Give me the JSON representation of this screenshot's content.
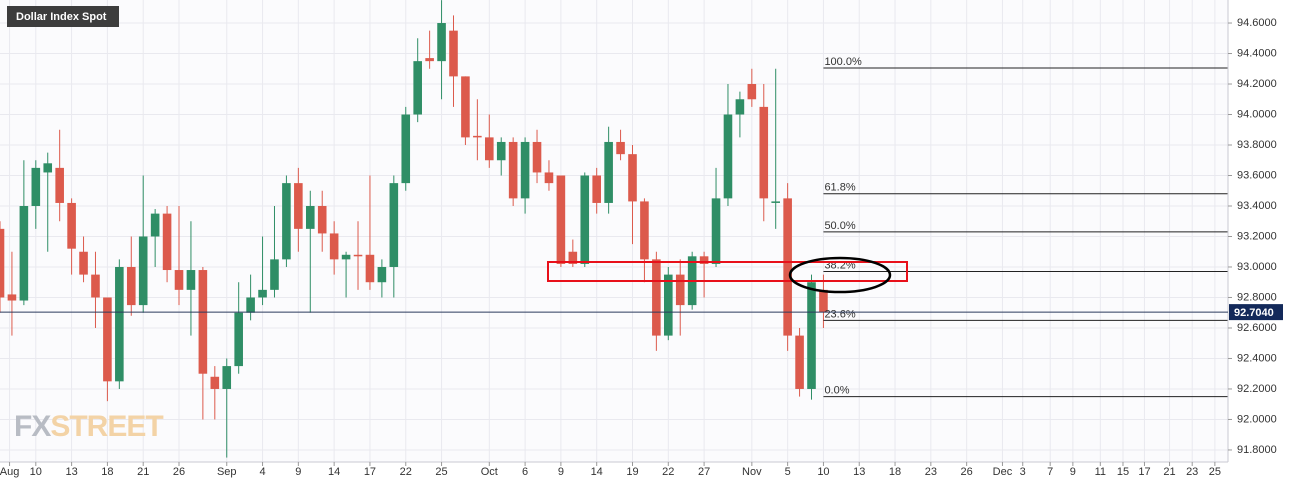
{
  "chart_data": {
    "type": "candlestick",
    "title": "Dollar Index Spot",
    "watermark": [
      "FX",
      "STREET"
    ],
    "up_color": "#2f8e66",
    "down_color": "#dc5a4c",
    "grid": true,
    "xlim": [
      0,
      102.9
    ],
    "ylim": [
      91.721,
      94.751
    ],
    "xticks": [
      {
        "value": 0.8,
        "label": "Aug"
      },
      {
        "value": 3,
        "label": "10"
      },
      {
        "value": 6,
        "label": "13"
      },
      {
        "value": 9,
        "label": "18"
      },
      {
        "value": 12,
        "label": "21"
      },
      {
        "value": 15,
        "label": "26"
      },
      {
        "value": 19,
        "label": "Sep"
      },
      {
        "value": 22,
        "label": "4"
      },
      {
        "value": 25,
        "label": "9"
      },
      {
        "value": 28,
        "label": "14"
      },
      {
        "value": 31,
        "label": "17"
      },
      {
        "value": 34,
        "label": "22"
      },
      {
        "value": 37,
        "label": "25"
      },
      {
        "value": 41,
        "label": "Oct"
      },
      {
        "value": 44,
        "label": "6"
      },
      {
        "value": 47,
        "label": "9"
      },
      {
        "value": 50,
        "label": "14"
      },
      {
        "value": 53,
        "label": "19"
      },
      {
        "value": 56,
        "label": "22"
      },
      {
        "value": 59,
        "label": "27"
      },
      {
        "value": 63,
        "label": "Nov"
      },
      {
        "value": 66,
        "label": "5"
      },
      {
        "value": 69,
        "label": "10"
      },
      {
        "value": 72,
        "label": "13"
      },
      {
        "value": 75,
        "label": "18"
      },
      {
        "value": 78,
        "label": "23"
      },
      {
        "value": 81,
        "label": "26"
      },
      {
        "value": 84,
        "label": "Dec"
      },
      {
        "value": 85.7,
        "label": "3"
      },
      {
        "value": 88,
        "label": "7"
      },
      {
        "value": 89.9,
        "label": "9"
      },
      {
        "value": 92.2,
        "label": "11"
      },
      {
        "value": 94.1,
        "label": "15"
      },
      {
        "value": 95.9,
        "label": "17"
      },
      {
        "value": 98,
        "label": "21"
      },
      {
        "value": 99.9,
        "label": "23"
      },
      {
        "value": 101.8,
        "label": "25"
      }
    ],
    "yticks": [
      {
        "value": 91.8,
        "label": "91.8000"
      },
      {
        "value": 92.0,
        "label": "92.0000"
      },
      {
        "value": 92.2,
        "label": "92.2000"
      },
      {
        "value": 92.4,
        "label": "92.4000"
      },
      {
        "value": 92.6,
        "label": "92.6000"
      },
      {
        "value": 92.8,
        "label": "92.8000"
      },
      {
        "value": 93.0,
        "label": "93.0000"
      },
      {
        "value": 93.2,
        "label": "93.2000"
      },
      {
        "value": 93.4,
        "label": "93.4000"
      },
      {
        "value": 93.6,
        "label": "93.6000"
      },
      {
        "value": 93.8,
        "label": "93.8000"
      },
      {
        "value": 94.0,
        "label": "94.0000"
      },
      {
        "value": 94.2,
        "label": "94.2000"
      },
      {
        "value": 94.4,
        "label": "94.4000"
      },
      {
        "value": 94.6,
        "label": "94.6000"
      }
    ],
    "x": [
      0,
      1,
      2,
      3,
      4,
      5,
      6,
      7,
      8,
      9,
      10,
      11,
      12,
      13,
      14,
      15,
      16,
      17,
      18,
      19,
      20,
      21,
      22,
      23,
      24,
      25,
      26,
      27,
      28,
      29,
      30,
      31,
      32,
      33,
      34,
      35,
      36,
      37,
      38,
      39,
      40,
      41,
      42,
      43,
      44,
      45,
      46,
      47,
      48,
      49,
      50,
      51,
      52,
      53,
      54,
      55,
      56,
      57,
      58,
      59,
      60,
      61,
      62,
      63,
      64,
      65,
      66,
      67,
      68,
      69
    ],
    "open": [
      93.25,
      92.82,
      92.78,
      93.4,
      93.62,
      93.65,
      93.42,
      93.1,
      92.95,
      92.8,
      92.25,
      93.0,
      92.75,
      93.2,
      93.35,
      92.98,
      92.85,
      92.98,
      92.28,
      92.2,
      92.35,
      92.7,
      92.8,
      92.85,
      93.05,
      93.55,
      93.25,
      93.4,
      93.22,
      93.05,
      93.08,
      93.08,
      92.9,
      93.0,
      93.55,
      94.0,
      94.37,
      94.35,
      94.55,
      94.25,
      93.86,
      93.85,
      93.7,
      93.82,
      93.45,
      93.82,
      93.62,
      93.6,
      93.1,
      93.02,
      93.6,
      93.42,
      93.82,
      93.74,
      93.43,
      93.05,
      92.55,
      92.95,
      92.75,
      93.07,
      93.02,
      93.45,
      94.0,
      94.2,
      94.05,
      93.42,
      93.45,
      92.55,
      92.2,
      92.85
    ],
    "high": [
      93.3,
      93.1,
      93.7,
      93.7,
      93.75,
      93.9,
      93.45,
      93.2,
      93.1,
      92.8,
      93.05,
      93.2,
      93.6,
      93.38,
      93.4,
      93.4,
      93.3,
      93.0,
      92.35,
      92.4,
      92.9,
      92.95,
      93.2,
      93.4,
      93.6,
      93.65,
      93.5,
      93.5,
      93.3,
      93.1,
      93.3,
      93.6,
      93.05,
      93.6,
      94.05,
      94.5,
      94.55,
      94.75,
      94.65,
      94.25,
      94.1,
      94.0,
      93.85,
      93.85,
      93.85,
      93.9,
      93.7,
      93.6,
      93.18,
      93.62,
      93.65,
      93.92,
      93.9,
      93.8,
      93.45,
      93.1,
      93.0,
      93.05,
      93.1,
      93.1,
      93.65,
      94.2,
      94.15,
      94.3,
      94.2,
      94.3,
      93.55,
      92.6,
      92.95,
      92.95
    ],
    "low": [
      92.7,
      92.55,
      92.75,
      93.25,
      93.1,
      93.3,
      92.95,
      92.9,
      92.6,
      92.12,
      92.2,
      92.68,
      92.7,
      93.0,
      92.9,
      92.75,
      92.55,
      92.0,
      92.0,
      91.75,
      92.3,
      92.65,
      92.75,
      92.8,
      93.0,
      93.1,
      92.7,
      93.1,
      92.95,
      92.8,
      92.85,
      92.85,
      92.8,
      92.8,
      93.5,
      93.95,
      94.3,
      94.1,
      94.05,
      93.8,
      93.7,
      93.65,
      93.6,
      93.4,
      93.35,
      93.55,
      93.5,
      93.0,
      93.0,
      93.0,
      93.35,
      93.35,
      93.7,
      93.15,
      92.9,
      92.45,
      92.52,
      92.55,
      92.72,
      92.8,
      93.0,
      93.4,
      93.85,
      94.05,
      93.3,
      93.25,
      92.45,
      92.15,
      92.13,
      92.6
    ],
    "close": [
      92.8,
      92.78,
      93.4,
      93.65,
      93.68,
      93.42,
      93.12,
      92.95,
      92.8,
      92.25,
      93.0,
      92.75,
      93.2,
      93.35,
      92.98,
      92.85,
      92.98,
      92.3,
      92.2,
      92.35,
      92.7,
      92.8,
      92.85,
      93.05,
      93.55,
      93.25,
      93.4,
      93.22,
      93.05,
      93.08,
      93.07,
      92.9,
      93.0,
      93.55,
      94.0,
      94.35,
      94.35,
      94.6,
      94.25,
      93.85,
      93.85,
      93.7,
      93.82,
      93.45,
      93.82,
      93.62,
      93.55,
      93.02,
      93.02,
      93.6,
      93.42,
      93.82,
      93.74,
      93.43,
      93.05,
      92.55,
      92.95,
      92.75,
      93.07,
      93.02,
      93.45,
      94.0,
      94.1,
      94.1,
      93.45,
      93.43,
      92.55,
      92.2,
      92.9,
      92.704
    ],
    "current_price": {
      "value": 92.704,
      "label": "92.7040"
    },
    "fib_start": 69,
    "fib_levels": [
      {
        "value": 94.305,
        "label": "100.0%"
      },
      {
        "value": 93.48,
        "label": "61.8%"
      },
      {
        "value": 93.23,
        "label": "50.0%"
      },
      {
        "value": 92.97,
        "label": "38.2%"
      },
      {
        "value": 92.65,
        "label": "23.6%"
      },
      {
        "value": 92.15,
        "label": "0.0%"
      }
    ]
  }
}
